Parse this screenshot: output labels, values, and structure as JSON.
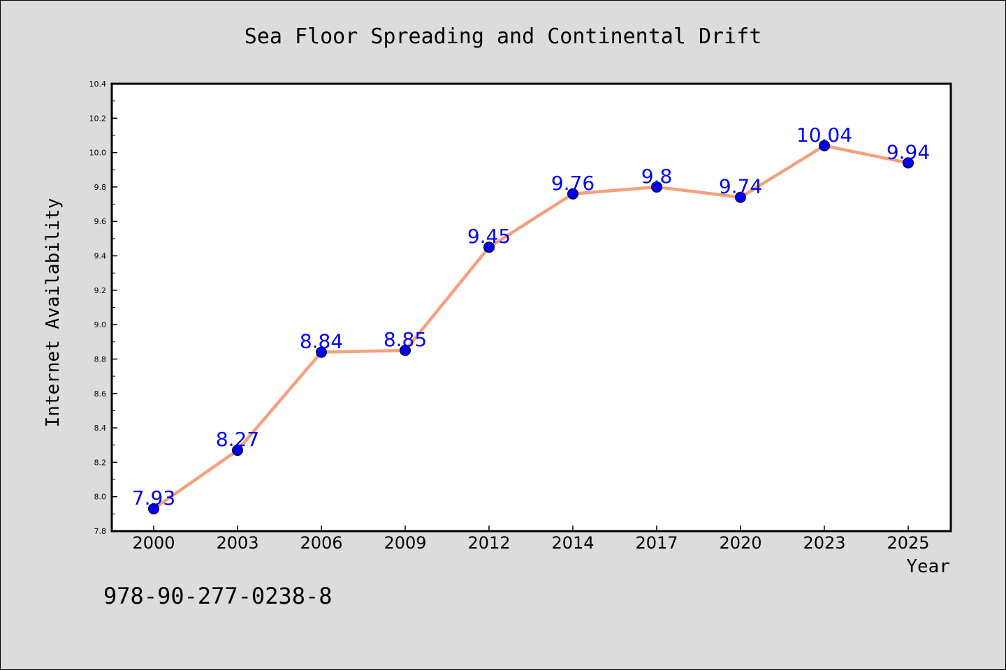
{
  "chart_data": {
    "type": "line",
    "title": "Sea Floor Spreading and Continental Drift",
    "xlabel": "Year",
    "ylabel": "Internet Availability",
    "categories": [
      "2000",
      "2003",
      "2006",
      "2009",
      "2012",
      "2014",
      "2017",
      "2020",
      "2023",
      "2025"
    ],
    "series": [
      {
        "values": [
          7.93,
          8.27,
          8.84,
          8.85,
          9.45,
          9.76,
          9.8,
          9.74,
          10.04,
          9.94
        ],
        "data_labels": [
          "7.93",
          "8.27",
          "8.84",
          "8.85",
          "9.45",
          "9.76",
          "9.8",
          "9.74",
          "10.04",
          "9.94"
        ],
        "line_color": "#f4a07e",
        "marker_color": "#0000ee"
      }
    ],
    "ylim": [
      7.8,
      10.4
    ],
    "y_ticks": [
      "7.8",
      "8.0",
      "8.2",
      "8.4",
      "8.6",
      "8.8",
      "9.0",
      "9.2",
      "9.4",
      "9.6",
      "9.8",
      "10.0",
      "10.2",
      "10.4"
    ],
    "grid": false,
    "legend": "none",
    "label_color": "#0000ff"
  },
  "footer_text": "978-90-277-0238-8"
}
